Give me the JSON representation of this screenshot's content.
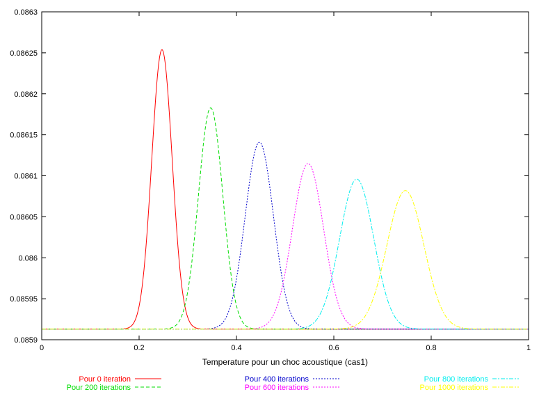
{
  "chart_data": {
    "type": "line",
    "title": "",
    "xlabel": "Temperature pour un choc acoustique (cas1)",
    "ylabel": "",
    "xlim": [
      0,
      1
    ],
    "ylim": [
      0.0859,
      0.0863
    ],
    "xticks": [
      "0",
      "0.2",
      "0.4",
      "0.6",
      "0.8",
      "1"
    ],
    "xtick_values": [
      0,
      0.2,
      0.4,
      0.6,
      0.8,
      1
    ],
    "yticks": [
      "0.0859",
      "0.08595",
      "0.086",
      "0.08605",
      "0.0861",
      "0.08615",
      "0.0862",
      "0.08625",
      "0.0863"
    ],
    "ytick_values": [
      0.0859,
      0.08595,
      0.086,
      0.08605,
      0.0861,
      0.08615,
      0.0862,
      0.08625,
      0.0863
    ],
    "grid": false,
    "legend_position": "bottom",
    "baseline": 0.085913,
    "series": [
      {
        "name": "Pour 0 iteration",
        "color": "#ff0000",
        "dash": "solid",
        "peak_x": 0.247,
        "peak_y": 0.086254,
        "width": 0.021
      },
      {
        "name": "Pour 200 iterations",
        "color": "#00dd00",
        "dash": "dashed",
        "peak_x": 0.347,
        "peak_y": 0.086183,
        "width": 0.025
      },
      {
        "name": "Pour 400 iterations",
        "color": "#0000cc",
        "dash": "dotted",
        "peak_x": 0.447,
        "peak_y": 0.086141,
        "width": 0.029
      },
      {
        "name": "Pour 600 iterations",
        "color": "#ff00ff",
        "dash": "dotted",
        "peak_x": 0.547,
        "peak_y": 0.086115,
        "width": 0.032
      },
      {
        "name": "Pour 800 iterations",
        "color": "#00eeee",
        "dash": "dashdot",
        "peak_x": 0.647,
        "peak_y": 0.086096,
        "width": 0.035
      },
      {
        "name": "Pour 1000 iterations",
        "color": "#ffff00",
        "dash": "dashdot",
        "peak_x": 0.747,
        "peak_y": 0.086082,
        "width": 0.038
      }
    ]
  }
}
